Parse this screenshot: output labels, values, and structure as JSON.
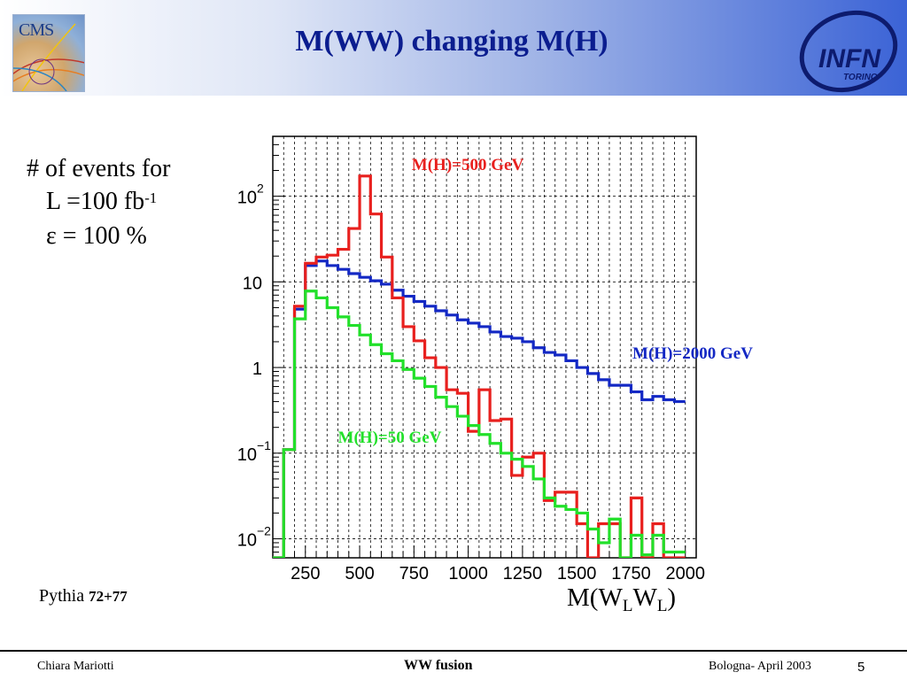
{
  "slide": {
    "title": "M(WW) changing M(H)",
    "cms_logo_text": "CMS",
    "infn_logo_text": "INFN",
    "infn_logo_subtext": "TORINO"
  },
  "notes": {
    "line1": "# of events for",
    "line2_prefix": "L =100 fb",
    "line2_sup": "-1",
    "line3": "ε = 100 %"
  },
  "pythia": {
    "label": "Pythia",
    "version": "72+77"
  },
  "footer": {
    "author": "Chiara Mariotti",
    "title": "WW fusion",
    "venue_date": "Bologna- April 2003",
    "page": "5"
  },
  "colors": {
    "mh500": "#e8201e",
    "mh2000": "#1328c4",
    "mh50": "#22e02a",
    "title": "#0b1d8f",
    "axis_title_color": "#000000"
  },
  "chart_data": {
    "type": "line",
    "subtype": "step-histogram",
    "yscale": "log",
    "xlim": [
      100,
      2050
    ],
    "ylim": [
      0.006,
      500
    ],
    "grid": true,
    "bin_edges_start": 100,
    "bin_width": 50,
    "x_ticks": [
      250,
      500,
      750,
      1000,
      1250,
      1500,
      1750,
      2000
    ],
    "x_tick_labels": [
      "250",
      "500",
      "750",
      "1000",
      "1250",
      "1500",
      "1750",
      "2000"
    ],
    "y_ticks": [
      0.01,
      0.1,
      1,
      10,
      100
    ],
    "y_tick_labels": [
      {
        "base": "10",
        "exp": "−2"
      },
      {
        "base": "10",
        "exp": "−1"
      },
      {
        "base": "1",
        "exp": ""
      },
      {
        "base": "10",
        "exp": ""
      },
      {
        "base": "10",
        "exp": "2"
      }
    ],
    "xlabel": {
      "main": "M(W",
      "sub1": "L",
      "mid": "W",
      "sub2": "L",
      "end": ")"
    },
    "series": [
      {
        "name": "M(H)=500 GeV",
        "color_key": "mh500",
        "values": [
          0.005,
          0.11,
          5.2,
          16.5,
          19.5,
          20.5,
          24,
          42,
          172,
          62,
          19.5,
          6.5,
          3.0,
          2.05,
          1.3,
          1.0,
          0.55,
          0.5,
          0.18,
          0.55,
          0.24,
          0.25,
          0.055,
          0.09,
          0.1,
          0.028,
          0.035,
          0.035,
          0.015,
          0.004,
          0.015,
          0.015,
          0.004,
          0.03,
          0.004,
          0.015,
          0.004,
          0.004
        ]
      },
      {
        "name": "M(H)=2000 GeV",
        "color_key": "mh2000",
        "values": [
          0.005,
          0.11,
          4.8,
          15.5,
          17.5,
          15.5,
          14,
          12.5,
          11.3,
          10.3,
          9.4,
          8.0,
          6.8,
          5.9,
          5.2,
          4.6,
          4.1,
          3.6,
          3.3,
          3.0,
          2.6,
          2.3,
          2.2,
          2.0,
          1.7,
          1.5,
          1.4,
          1.2,
          1.0,
          0.85,
          0.72,
          0.62,
          0.62,
          0.52,
          0.42,
          0.46,
          0.42,
          0.4
        ]
      },
      {
        "name": "M(H)=50 GeV",
        "color_key": "mh50",
        "values": [
          0.005,
          0.11,
          3.7,
          7.8,
          6.5,
          5.0,
          3.9,
          3.1,
          2.4,
          1.85,
          1.45,
          1.2,
          0.95,
          0.75,
          0.6,
          0.45,
          0.35,
          0.27,
          0.21,
          0.165,
          0.13,
          0.1,
          0.085,
          0.07,
          0.05,
          0.03,
          0.024,
          0.022,
          0.02,
          0.013,
          0.009,
          0.017,
          0.005,
          0.011,
          0.0065,
          0.011,
          0.007,
          0.007
        ]
      }
    ]
  }
}
